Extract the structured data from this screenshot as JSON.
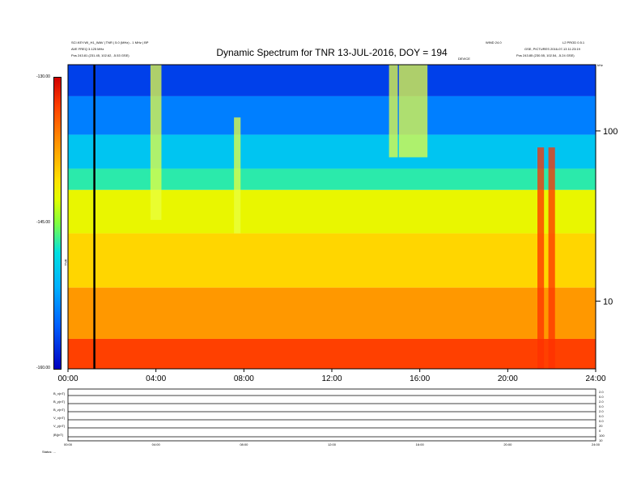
{
  "header": {
    "title": "Dynamic Spectrum for TNR 13-JUL-2016, DOY = 194",
    "top_left_line1": "SCI.KEY.WI_H1_WAV | TNR  |  5.0 (MHz) - 1 MHz  |  BP",
    "top_left_line2": "AVE FREQ 3.125 MHz",
    "top_left_line3": "Pos   243.81 (231.45, 102.62, -5.53 GSE)",
    "top_right_line1": "WIND 24.0",
    "top_right_line2": "L2 PROD 0.5.1",
    "top_right_line3": "GSE, PICTURES 2016-07-13 11:23:19",
    "top_right_line4": "Pos   243.85 (230.55, 102.54, -5.24 GSE)",
    "top_right_line5": "kHz",
    "top_mid_label": "DEVICE"
  },
  "colorbar": {
    "max_label": "-130.00",
    "mid_label": "-145.00",
    "min_label": "-160.00",
    "unit_label": "TNR"
  },
  "bottom": {
    "line_labels": [
      "B_x(nT)",
      "B_y(nT)",
      "B_z(nT)",
      "V_x(nT)",
      "V_y(nT)",
      "|B|(nT)"
    ],
    "right_ticks": [
      "2.0",
      "0.0",
      "2.0",
      "0.0",
      "2.0",
      "0.0",
      "0.0",
      "20",
      "0",
      "100",
      "10"
    ],
    "status_label": "Status: ..."
  },
  "chart_data": {
    "type": "heatmap",
    "title": "Dynamic Spectrum for TNR 13-JUL-2016, DOY = 194",
    "xlabel": "",
    "ylabel": "kHz",
    "x_ticks": [
      "00:00",
      "04:00",
      "08:00",
      "12:00",
      "16:00",
      "20:00",
      "24:00"
    ],
    "x_range_hours": [
      0,
      24
    ],
    "y_scale": "log",
    "y_ticks": [
      10,
      100
    ],
    "y_range_khz": [
      4,
      245
    ],
    "colorbar_range": [
      -160,
      -130
    ],
    "colorbar_ticks": [
      -130,
      -145,
      -160
    ],
    "marker_line_hour": 1.2,
    "intensity_bands": [
      {
        "freq_khz_from": 160,
        "freq_khz_to": 245,
        "level_db": -157
      },
      {
        "freq_khz_from": 95,
        "freq_khz_to": 160,
        "level_db": -154
      },
      {
        "freq_khz_from": 60,
        "freq_khz_to": 95,
        "level_db": -150
      },
      {
        "freq_khz_from": 45,
        "freq_khz_to": 60,
        "level_db": -147
      },
      {
        "freq_khz_from": 25,
        "freq_khz_to": 45,
        "level_db": -142
      },
      {
        "freq_khz_from": 12,
        "freq_khz_to": 25,
        "level_db": -140
      },
      {
        "freq_khz_from": 6,
        "freq_khz_to": 12,
        "level_db": -137
      },
      {
        "freq_khz_from": 4,
        "freq_khz_to": 6,
        "level_db": -133
      }
    ],
    "bursts": [
      {
        "hour": 4.0,
        "width_h": 0.5,
        "freq_khz_from": 30,
        "freq_khz_to": 245
      },
      {
        "hour": 7.7,
        "width_h": 0.3,
        "freq_khz_from": 25,
        "freq_khz_to": 120
      },
      {
        "hour": 14.8,
        "width_h": 0.4,
        "freq_khz_from": 70,
        "freq_khz_to": 245
      },
      {
        "hour": 15.7,
        "width_h": 1.3,
        "freq_khz_from": 70,
        "freq_khz_to": 245
      },
      {
        "hour": 21.5,
        "width_h": 0.3,
        "freq_khz_from": 4,
        "freq_khz_to": 80
      },
      {
        "hour": 22.0,
        "width_h": 0.3,
        "freq_khz_from": 4,
        "freq_khz_to": 80
      }
    ]
  }
}
